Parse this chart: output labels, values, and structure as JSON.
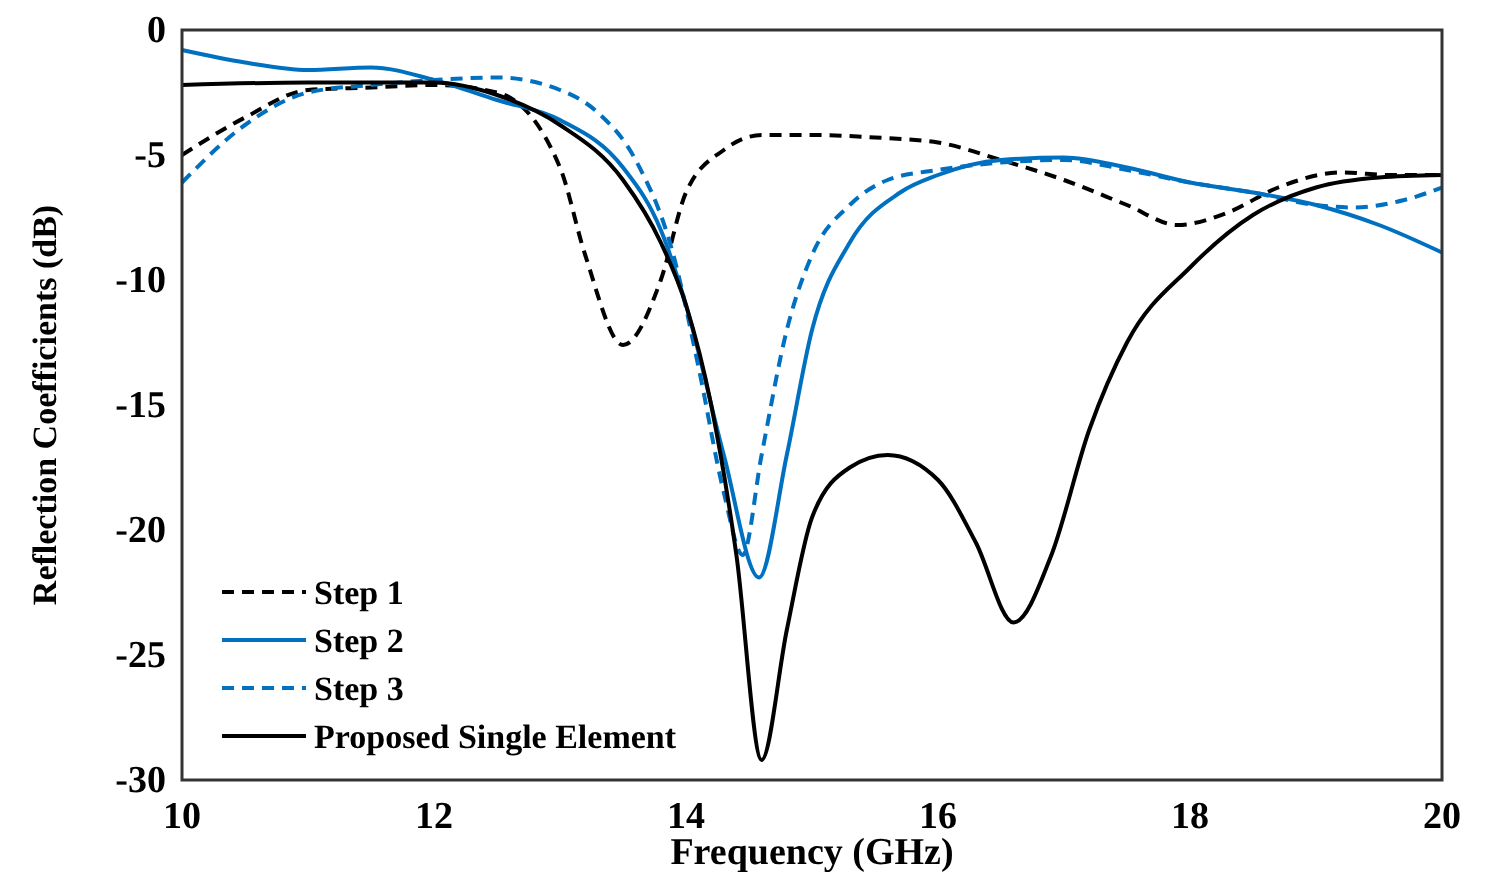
{
  "chart_data": {
    "type": "line",
    "xlabel": "Frequency (GHz)",
    "ylabel": "Reflection Coefficients (dB)",
    "xlim": [
      10,
      20
    ],
    "xticks": [
      10,
      12,
      14,
      16,
      18,
      20
    ],
    "ylim": [
      -30,
      0
    ],
    "yticks": [
      -30,
      -25,
      -20,
      -15,
      -10,
      -5,
      0
    ],
    "grid": false,
    "legend": "bottom left",
    "series": [
      {
        "name": "Step 1",
        "color": "#000000",
        "line_style": "dashed",
        "x": [
          10,
          10.5,
          11,
          11.5,
          12,
          12.5,
          13,
          13.2,
          13.5,
          13.8,
          14,
          14.3,
          14.6,
          15,
          15.5,
          16,
          16.5,
          17,
          17.5,
          17.9,
          18.3,
          18.7,
          19.2,
          19.6,
          20
        ],
        "values": [
          -5,
          -3.5,
          -2.4,
          -2.3,
          -2.2,
          -2.5,
          -5.5,
          -9,
          -12.6,
          -10,
          -6.5,
          -4.8,
          -4.2,
          -4.2,
          -4.3,
          -4.5,
          -5.2,
          -6,
          -7,
          -7.8,
          -7.3,
          -6.3,
          -5.7,
          -5.8,
          -5.8
        ]
      },
      {
        "name": "Step 2",
        "color": "#0070c0",
        "line_style": "solid",
        "x": [
          10,
          10.5,
          11,
          11.5,
          12,
          12.5,
          13,
          13.5,
          13.8,
          14,
          14.3,
          14.58,
          14.8,
          15,
          15.3,
          15.7,
          16,
          16.5,
          17,
          17.5,
          18,
          18.5,
          19,
          19.5,
          20
        ],
        "values": [
          -0.8,
          -1.3,
          -1.6,
          -1.5,
          -2,
          -2.8,
          -3.6,
          -5.5,
          -8,
          -11,
          -17,
          -21.9,
          -17,
          -12,
          -8.5,
          -6.5,
          -5.8,
          -5.2,
          -5.1,
          -5.5,
          -6.1,
          -6.5,
          -7,
          -7.8,
          -8.9
        ]
      },
      {
        "name": "Step 3",
        "color": "#0070c0",
        "line_style": "dashed",
        "x": [
          10,
          10.5,
          11,
          11.5,
          12,
          12.5,
          13,
          13.3,
          13.6,
          13.9,
          14.1,
          14.3,
          14.45,
          14.6,
          14.8,
          15,
          15.3,
          15.6,
          16,
          16.5,
          17,
          17.5,
          18,
          18.5,
          19,
          19.3,
          19.7,
          20
        ],
        "values": [
          -6.1,
          -3.8,
          -2.5,
          -2.2,
          -2,
          -1.9,
          -2.4,
          -3.3,
          -5.2,
          -9,
          -13.5,
          -18.5,
          -21,
          -17,
          -12,
          -9,
          -7,
          -6,
          -5.6,
          -5.3,
          -5.2,
          -5.6,
          -6.1,
          -6.5,
          -7,
          -7.1,
          -6.8,
          -6.3
        ]
      },
      {
        "name": "Proposed Single Element",
        "color": "#000000",
        "line_style": "solid",
        "x": [
          10,
          11,
          12,
          12.5,
          13,
          13.5,
          13.8,
          14,
          14.2,
          14.4,
          14.6,
          14.8,
          15,
          15.3,
          15.6,
          16,
          16.3,
          16.6,
          16.9,
          17.2,
          17.5,
          18,
          18.5,
          19,
          19.5,
          20
        ],
        "values": [
          -2.2,
          -2.1,
          -2.1,
          -2.6,
          -3.8,
          -6,
          -8.5,
          -11,
          -15,
          -21,
          -29.2,
          -24,
          -19.5,
          -17.5,
          -17,
          -18,
          -20.5,
          -23.7,
          -21,
          -16,
          -12.5,
          -9.5,
          -7.4,
          -6.3,
          -5.9,
          -5.8
        ]
      }
    ]
  }
}
